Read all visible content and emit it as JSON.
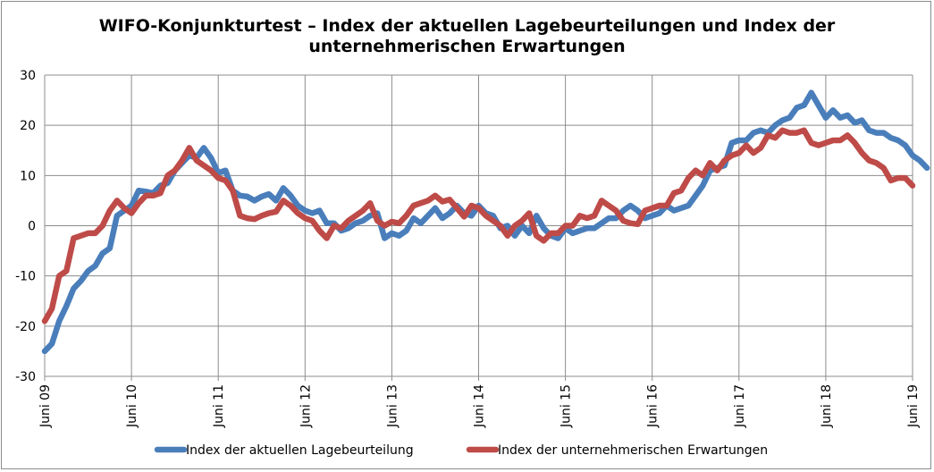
{
  "chart_data": {
    "type": "line",
    "title_lines": [
      "WIFO-Konjunkturtest – Index der aktuellen Lagebeurteilungen und Index der",
      "unternehmerischen Erwartungen"
    ],
    "xlabel": "",
    "ylabel": "",
    "ylim": [
      -30,
      30
    ],
    "yticks": [
      "30",
      "20",
      "10",
      "0",
      "-10",
      "-20",
      "-30"
    ],
    "xticks": [
      "Juni 09",
      "Juni 10",
      "Juni 11",
      "Juni 12",
      "Juni 13",
      "Juni 14",
      "Juni 15",
      "Juni 16",
      "Juni 17",
      "Juni 18",
      "Juni 19"
    ],
    "x_range_months": [
      0,
      120
    ],
    "grid": "on",
    "legend_position": "bottom",
    "series": [
      {
        "name": "Index der aktuellen Lagebeurteilung",
        "color": "#4a7ebb",
        "points": [
          [
            0,
            -25
          ],
          [
            1,
            -23.5
          ],
          [
            2,
            -19
          ],
          [
            3,
            -16
          ],
          [
            4,
            -12.5
          ],
          [
            5,
            -11
          ],
          [
            6,
            -9
          ],
          [
            7,
            -8
          ],
          [
            8,
            -5.5
          ],
          [
            9,
            -4.5
          ],
          [
            10,
            2
          ],
          [
            11,
            3
          ],
          [
            12,
            4
          ],
          [
            13,
            7
          ],
          [
            14,
            6.8
          ],
          [
            15,
            6.5
          ],
          [
            16,
            8
          ],
          [
            17,
            8.5
          ],
          [
            18,
            11
          ],
          [
            19,
            12.5
          ],
          [
            20,
            14
          ],
          [
            21,
            13.5
          ],
          [
            22,
            15.5
          ],
          [
            23,
            13.5
          ],
          [
            24,
            10.5
          ],
          [
            25,
            11
          ],
          [
            26,
            7
          ],
          [
            27,
            6
          ],
          [
            28,
            5.8
          ],
          [
            29,
            5
          ],
          [
            30,
            5.8
          ],
          [
            31,
            6.3
          ],
          [
            32,
            5
          ],
          [
            33,
            7.5
          ],
          [
            34,
            6
          ],
          [
            35,
            4
          ],
          [
            36,
            3
          ],
          [
            37,
            2.5
          ],
          [
            38,
            3
          ],
          [
            39,
            0.5
          ],
          [
            40,
            0.5
          ],
          [
            41,
            -1
          ],
          [
            42,
            -0.5
          ],
          [
            43,
            0.5
          ],
          [
            44,
            1
          ],
          [
            45,
            2
          ],
          [
            46,
            2.5
          ],
          [
            47,
            -2.5
          ],
          [
            48,
            -1.5
          ],
          [
            49,
            -2
          ],
          [
            50,
            -1
          ],
          [
            51,
            1.5
          ],
          [
            52,
            0.5
          ],
          [
            53,
            2
          ],
          [
            54,
            3.5
          ],
          [
            55,
            1.5
          ],
          [
            56,
            2.5
          ],
          [
            57,
            4
          ],
          [
            58,
            2.5
          ],
          [
            59,
            2
          ],
          [
            60,
            4
          ],
          [
            61,
            2.5
          ],
          [
            62,
            2
          ],
          [
            63,
            -0.5
          ],
          [
            64,
            0
          ],
          [
            65,
            -2
          ],
          [
            66,
            0
          ],
          [
            67,
            -1.5
          ],
          [
            68,
            2
          ],
          [
            69,
            -0.5
          ],
          [
            70,
            -2
          ],
          [
            71,
            -2.5
          ],
          [
            72,
            -0.5
          ],
          [
            73,
            -1.5
          ],
          [
            74,
            -1
          ],
          [
            75,
            -0.5
          ],
          [
            76,
            -0.5
          ],
          [
            77,
            0.5
          ],
          [
            78,
            1.5
          ],
          [
            79,
            1.5
          ],
          [
            80,
            3
          ],
          [
            81,
            4
          ],
          [
            82,
            3
          ],
          [
            83,
            1.5
          ],
          [
            84,
            2
          ],
          [
            85,
            2.5
          ],
          [
            86,
            4
          ],
          [
            87,
            3
          ],
          [
            88,
            3.5
          ],
          [
            89,
            4
          ],
          [
            90,
            6
          ],
          [
            91,
            8
          ],
          [
            92,
            11
          ],
          [
            93,
            11.5
          ],
          [
            94,
            12
          ],
          [
            95,
            16.5
          ],
          [
            96,
            17
          ],
          [
            97,
            17
          ],
          [
            98,
            18.5
          ],
          [
            99,
            19
          ],
          [
            100,
            18.5
          ],
          [
            101,
            20
          ],
          [
            102,
            21
          ],
          [
            103,
            21.5
          ],
          [
            104,
            23.5
          ],
          [
            105,
            24
          ],
          [
            106,
            26.5
          ],
          [
            107,
            24
          ],
          [
            108,
            21.5
          ],
          [
            109,
            23
          ],
          [
            110,
            21.5
          ],
          [
            111,
            22
          ],
          [
            112,
            20.5
          ],
          [
            113,
            21
          ],
          [
            114,
            19
          ],
          [
            115,
            18.5
          ],
          [
            116,
            18.5
          ],
          [
            117,
            17.5
          ],
          [
            118,
            17
          ],
          [
            119,
            16
          ],
          [
            120,
            14
          ],
          [
            121,
            13
          ],
          [
            122,
            11.5
          ]
        ]
      },
      {
        "name": "Index der unternehmerischen Erwartungen",
        "color": "#be4b48",
        "points": [
          [
            0,
            -19
          ],
          [
            1,
            -16.5
          ],
          [
            2,
            -10
          ],
          [
            3,
            -9
          ],
          [
            4,
            -2.5
          ],
          [
            5,
            -2
          ],
          [
            6,
            -1.5
          ],
          [
            7,
            -1.5
          ],
          [
            8,
            0
          ],
          [
            9,
            3
          ],
          [
            10,
            5
          ],
          [
            11,
            3.5
          ],
          [
            12,
            2.5
          ],
          [
            13,
            4.5
          ],
          [
            14,
            6
          ],
          [
            15,
            6
          ],
          [
            16,
            6.5
          ],
          [
            17,
            10
          ],
          [
            18,
            11
          ],
          [
            19,
            13
          ],
          [
            20,
            15.5
          ],
          [
            21,
            13
          ],
          [
            22,
            12
          ],
          [
            23,
            11
          ],
          [
            24,
            9.5
          ],
          [
            25,
            9
          ],
          [
            26,
            7
          ],
          [
            27,
            2
          ],
          [
            28,
            1.5
          ],
          [
            29,
            1.3
          ],
          [
            30,
            2
          ],
          [
            31,
            2.5
          ],
          [
            32,
            2.8
          ],
          [
            33,
            5
          ],
          [
            34,
            4
          ],
          [
            35,
            2.5
          ],
          [
            36,
            1.5
          ],
          [
            37,
            1
          ],
          [
            38,
            -1
          ],
          [
            39,
            -2.5
          ],
          [
            40,
            0
          ],
          [
            41,
            -0.5
          ],
          [
            42,
            1
          ],
          [
            43,
            2
          ],
          [
            44,
            3
          ],
          [
            45,
            4.5
          ],
          [
            46,
            1
          ],
          [
            47,
            0
          ],
          [
            48,
            0.8
          ],
          [
            49,
            0.5
          ],
          [
            50,
            2
          ],
          [
            51,
            4
          ],
          [
            52,
            4.5
          ],
          [
            53,
            5
          ],
          [
            54,
            6
          ],
          [
            55,
            4.8
          ],
          [
            56,
            5.2
          ],
          [
            57,
            3.5
          ],
          [
            58,
            1.8
          ],
          [
            59,
            4
          ],
          [
            60,
            3.5
          ],
          [
            61,
            2
          ],
          [
            62,
            1
          ],
          [
            63,
            0
          ],
          [
            64,
            -2
          ],
          [
            65,
            0
          ],
          [
            66,
            1
          ],
          [
            67,
            2.5
          ],
          [
            68,
            -2
          ],
          [
            69,
            -3
          ],
          [
            70,
            -1.5
          ],
          [
            71,
            -1.5
          ],
          [
            72,
            0
          ],
          [
            73,
            0
          ],
          [
            74,
            2
          ],
          [
            75,
            1.5
          ],
          [
            76,
            2
          ],
          [
            77,
            5
          ],
          [
            78,
            4
          ],
          [
            79,
            3
          ],
          [
            80,
            1
          ],
          [
            81,
            0.5
          ],
          [
            82,
            0.3
          ],
          [
            83,
            3
          ],
          [
            84,
            3.5
          ],
          [
            85,
            4
          ],
          [
            86,
            4
          ],
          [
            87,
            6.5
          ],
          [
            88,
            7
          ],
          [
            89,
            9.5
          ],
          [
            90,
            11
          ],
          [
            91,
            10
          ],
          [
            92,
            12.5
          ],
          [
            93,
            11
          ],
          [
            94,
            13
          ],
          [
            95,
            14
          ],
          [
            96,
            14.5
          ],
          [
            97,
            16
          ],
          [
            98,
            14.5
          ],
          [
            99,
            15.5
          ],
          [
            100,
            18
          ],
          [
            101,
            17.5
          ],
          [
            102,
            19
          ],
          [
            103,
            18.5
          ],
          [
            104,
            18.5
          ],
          [
            105,
            19
          ],
          [
            106,
            16.5
          ],
          [
            107,
            16
          ],
          [
            108,
            16.5
          ],
          [
            109,
            17
          ],
          [
            110,
            17
          ],
          [
            111,
            18
          ],
          [
            112,
            16.5
          ],
          [
            113,
            14.5
          ],
          [
            114,
            13
          ],
          [
            115,
            12.5
          ],
          [
            116,
            11.5
          ],
          [
            117,
            9
          ],
          [
            118,
            9.5
          ],
          [
            119,
            9.5
          ],
          [
            120,
            8
          ]
        ]
      }
    ]
  }
}
